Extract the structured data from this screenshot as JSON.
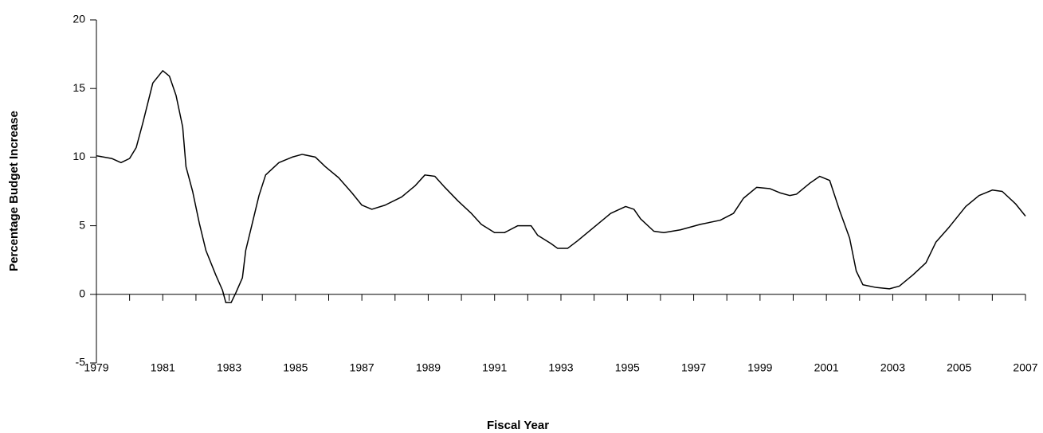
{
  "chart_data": {
    "type": "line",
    "x_label": "Fiscal Year",
    "y_label": "Percentage Budget Increase",
    "x": [
      1979.0,
      1979.46,
      1979.74,
      1980.0,
      1980.2,
      1980.4,
      1980.7,
      1981.0,
      1981.2,
      1981.4,
      1981.6,
      1981.7,
      1981.9,
      1982.1,
      1982.3,
      1982.6,
      1982.8,
      1982.9,
      1983.06,
      1983.2,
      1983.4,
      1983.5,
      1983.7,
      1983.9,
      1984.1,
      1984.5,
      1984.9,
      1985.2,
      1985.6,
      1985.9,
      1986.3,
      1986.7,
      1987.0,
      1987.3,
      1987.7,
      1988.2,
      1988.6,
      1988.9,
      1989.2,
      1989.5,
      1989.9,
      1990.3,
      1990.6,
      1991.0,
      1991.3,
      1991.7,
      1992.1,
      1992.3,
      1992.7,
      1992.9,
      1993.2,
      1993.5,
      1994.0,
      1994.5,
      1994.95,
      1995.2,
      1995.4,
      1995.8,
      1996.1,
      1996.6,
      1997.2,
      1997.8,
      1998.2,
      1998.5,
      1998.9,
      1999.3,
      1999.6,
      1999.9,
      2000.1,
      2000.5,
      2000.8,
      2001.1,
      2001.4,
      2001.7,
      2001.9,
      2002.1,
      2002.5,
      2002.9,
      2003.2,
      2003.6,
      2004.0,
      2004.3,
      2004.7,
      2005.2,
      2005.6,
      2006.0,
      2006.3,
      2006.7,
      2007.0
    ],
    "series": [
      {
        "color": "#000000",
        "values": [
          10.1,
          9.9,
          9.6,
          9.9,
          10.7,
          12.5,
          15.4,
          16.3,
          15.9,
          14.5,
          12.2,
          9.3,
          7.5,
          5.2,
          3.2,
          1.4,
          0.3,
          -0.6,
          -0.6,
          0.1,
          1.2,
          3.2,
          5.2,
          7.2,
          8.7,
          9.6,
          10.0,
          10.2,
          10.0,
          9.3,
          8.5,
          7.4,
          6.5,
          6.2,
          6.5,
          7.1,
          7.9,
          8.7,
          8.6,
          7.8,
          6.8,
          5.9,
          5.1,
          4.5,
          4.5,
          5.0,
          5.0,
          4.3,
          3.7,
          3.35,
          3.35,
          3.9,
          4.9,
          5.9,
          6.4,
          6.2,
          5.5,
          4.6,
          4.5,
          4.7,
          5.1,
          5.4,
          5.9,
          7.0,
          7.8,
          7.7,
          7.4,
          7.2,
          7.3,
          8.1,
          8.6,
          8.3,
          6.1,
          4.1,
          1.7,
          0.7,
          0.5,
          0.4,
          0.6,
          1.4,
          2.3,
          3.8,
          4.9,
          6.4,
          7.2,
          7.6,
          7.5,
          6.6,
          5.7
        ]
      }
    ],
    "xlim": [
      1979,
      2007
    ],
    "xticks": [
      1979,
      1981,
      1983,
      1985,
      1987,
      1989,
      1991,
      1993,
      1995,
      1997,
      1999,
      2001,
      2003,
      2005,
      2007
    ],
    "ylim": [
      -5,
      20
    ],
    "yticks": [
      -5,
      0,
      5,
      10,
      15,
      20
    ],
    "grid": false
  }
}
